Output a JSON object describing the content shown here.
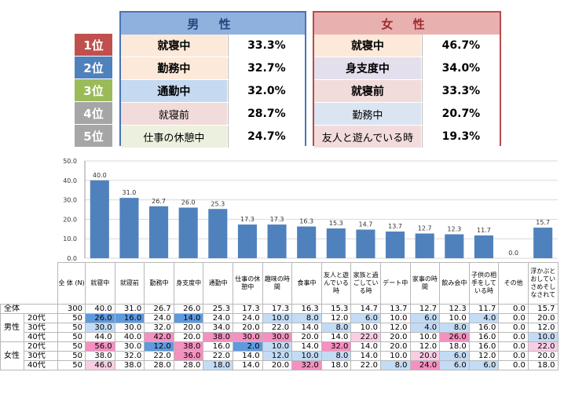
{
  "ranking": {
    "male_header": "男 性",
    "female_header": "女 性",
    "rows": [
      {
        "rank": "1位",
        "color": "#c0504d",
        "male_label": "就寝中",
        "male_value": "33.3%",
        "male_bg": "#fde9d9",
        "female_label": "就寝中",
        "female_value": "46.7%",
        "female_bg": "#fde9d9"
      },
      {
        "rank": "2位",
        "color": "#4f81bd",
        "male_label": "勤務中",
        "male_value": "32.7%",
        "male_bg": "#fde9d9",
        "female_label": "身支度中",
        "female_value": "34.0%",
        "female_bg": "#e4dfec"
      },
      {
        "rank": "3位",
        "color": "#9bbb59",
        "male_label": "通勤中",
        "male_value": "32.0%",
        "male_bg": "#c5d9f1",
        "female_label": "就寝前",
        "female_value": "33.3%",
        "female_bg": "#f2dcdb"
      },
      {
        "rank": "4位",
        "color": "#a6a6a6",
        "male_label": "就寝前",
        "male_value": "28.7%",
        "male_bg": "#f2dcdb",
        "female_label": "勤務中",
        "female_value": "20.7%",
        "female_bg": "#dbe5f1"
      },
      {
        "rank": "5位",
        "color": "#a6a6a6",
        "male_label": "仕事の休憩中",
        "male_value": "24.7%",
        "male_bg": "#ebf1de",
        "female_label": "友人と遊んでいる時",
        "female_value": "19.3%",
        "female_bg": "#f2dcdb"
      }
    ]
  },
  "chart_data": {
    "type": "bar",
    "ylim": [
      0,
      50
    ],
    "yticks": [
      "0.0",
      "10.0",
      "20.0",
      "30.0",
      "40.0",
      "50.0"
    ],
    "bar_color": "#4f81bd",
    "values": [
      40.0,
      31.0,
      26.7,
      26.0,
      25.3,
      17.3,
      17.3,
      16.3,
      15.3,
      14.7,
      13.7,
      12.7,
      12.3,
      11.7,
      0.0,
      15.7
    ],
    "value_labels": [
      "40.0",
      "31.0",
      "26.7",
      "26.0",
      "25.3",
      "17.3",
      "17.3",
      "16.3",
      "15.3",
      "14.7",
      "13.7",
      "12.7",
      "12.3",
      "11.7",
      "0.0",
      "15.7"
    ],
    "categories": [
      "就寝中",
      "就寝前",
      "勤務中",
      "身支度中",
      "通勤中",
      "仕事の休憩中",
      "趣味の時間",
      "食事中",
      "友人と遊んでいる時",
      "家族と過ごしている時",
      "デート中",
      "家事の時間",
      "飲み会中",
      "子供の相手をしている時",
      "その他",
      "浮かぶとおしていさめそしなされて"
    ]
  },
  "table": {
    "header_total": "全 体 (N)",
    "categories": [
      "就寝中",
      "就寝前",
      "勤務中",
      "身支度中",
      "通勤中",
      "仕事の休憩中",
      "趣味の時間",
      "食事中",
      "友人と遊んでいる時",
      "家族と過ごしている時",
      "デート中",
      "家事の時間",
      "飲み会中",
      "子供の相手をしている時",
      "その他",
      "浮かぶとおしていさめそしなされて"
    ],
    "rows": [
      {
        "group": "",
        "age": "全体",
        "n": "300",
        "values": [
          "40.0",
          "31.0",
          "26.7",
          "26.0",
          "25.3",
          "17.3",
          "17.3",
          "16.3",
          "15.3",
          "14.7",
          "13.7",
          "12.7",
          "12.3",
          "11.7",
          "0.0",
          "15.7"
        ],
        "hl": [
          "",
          "",
          "",
          "",
          "",
          "",
          "",
          "",
          "",
          "",
          "",
          "",
          "",
          "",
          "",
          ""
        ]
      },
      {
        "group": "男性",
        "age": "20代",
        "n": "50",
        "values": [
          "26.0",
          "16.0",
          "24.0",
          "14.0",
          "24.0",
          "24.0",
          "10.0",
          "8.0",
          "12.0",
          "6.0",
          "10.0",
          "6.0",
          "10.0",
          "4.0",
          "0.0",
          "20.0"
        ],
        "hl": [
          "hl-blue",
          "hl-blue",
          "",
          "hl-blue",
          "",
          "",
          "hl-lblue",
          "hl-lblue",
          "",
          "hl-lblue",
          "",
          "hl-lblue",
          "",
          "hl-lblue",
          "",
          ""
        ]
      },
      {
        "group": "",
        "age": "30代",
        "n": "50",
        "values": [
          "30.0",
          "30.0",
          "32.0",
          "20.0",
          "34.0",
          "20.0",
          "22.0",
          "14.0",
          "8.0",
          "10.0",
          "12.0",
          "4.0",
          "8.0",
          "16.0",
          "0.0",
          "12.0"
        ],
        "hl": [
          "hl-lblue",
          "",
          "",
          "",
          "",
          "",
          "",
          "",
          "hl-lblue",
          "",
          "",
          "hl-lblue",
          "hl-lblue",
          "",
          "",
          ""
        ]
      },
      {
        "group": "",
        "age": "40代",
        "n": "50",
        "values": [
          "44.0",
          "40.0",
          "42.0",
          "20.0",
          "38.0",
          "30.0",
          "30.0",
          "20.0",
          "14.0",
          "22.0",
          "20.0",
          "10.0",
          "26.0",
          "16.0",
          "0.0",
          "10.0"
        ],
        "hl": [
          "",
          "",
          "hl-pink",
          "",
          "hl-pink",
          "hl-pink",
          "hl-pink",
          "",
          "",
          "hl-lpink",
          "",
          "",
          "hl-pink",
          "",
          "",
          "hl-lblue"
        ]
      },
      {
        "group": "女性",
        "age": "20代",
        "n": "50",
        "values": [
          "56.0",
          "30.0",
          "12.0",
          "38.0",
          "16.0",
          "2.0",
          "10.0",
          "14.0",
          "32.0",
          "14.0",
          "20.0",
          "12.0",
          "18.0",
          "16.0",
          "0.0",
          "22.0"
        ],
        "hl": [
          "hl-pink",
          "",
          "hl-blue",
          "hl-pink",
          "",
          "hl-blue",
          "hl-lblue",
          "",
          "hl-pink",
          "",
          "",
          "",
          "",
          "",
          "",
          "hl-lpink"
        ]
      },
      {
        "group": "",
        "age": "30代",
        "n": "50",
        "values": [
          "38.0",
          "32.0",
          "22.0",
          "36.0",
          "22.0",
          "14.0",
          "12.0",
          "10.0",
          "8.0",
          "14.0",
          "10.0",
          "20.0",
          "6.0",
          "12.0",
          "0.0",
          "20.0"
        ],
        "hl": [
          "",
          "",
          "",
          "hl-pink",
          "",
          "",
          "hl-lblue",
          "hl-lblue",
          "hl-lblue",
          "",
          "",
          "hl-lpink",
          "hl-lblue",
          "",
          "",
          ""
        ]
      },
      {
        "group": "",
        "age": "40代",
        "n": "50",
        "values": [
          "46.0",
          "38.0",
          "28.0",
          "28.0",
          "18.0",
          "14.0",
          "20.0",
          "32.0",
          "18.0",
          "22.0",
          "8.0",
          "24.0",
          "6.0",
          "6.0",
          "0.0",
          "18.0"
        ],
        "hl": [
          "hl-lpink",
          "",
          "",
          "",
          "hl-lblue",
          "",
          "",
          "hl-pink",
          "",
          "",
          "hl-lblue",
          "hl-pink",
          "hl-lblue",
          "hl-lblue",
          "",
          ""
        ]
      }
    ]
  }
}
